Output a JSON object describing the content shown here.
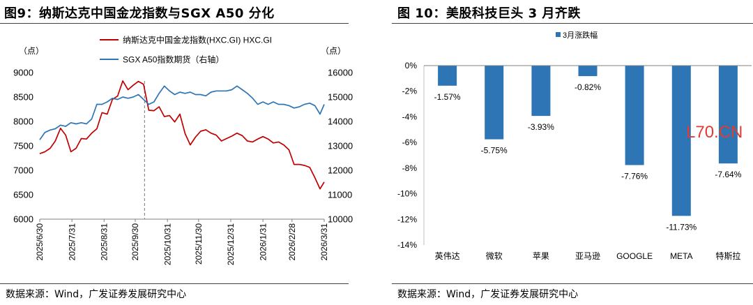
{
  "figures": [
    {
      "source": "数据来源：Wind，广发证券发展研究中心"
    },
    {
      "source": "数据来源：Wind，广发证券发展研究中心",
      "watermark": "L70.CN"
    }
  ],
  "colors": {
    "hxc": "#c00000",
    "sgx": "#2e75b6",
    "bar": "#2e75b6",
    "watermark": "#e03c31"
  },
  "chart_data": [
    {
      "type": "line",
      "title": "图9：纳斯达克中国金龙指数与SGX A50 分化",
      "x_tick_labels": [
        "2025/6/30",
        "2025/7/31",
        "2025/8/31",
        "2025/9/30",
        "2025/10/31",
        "2025/11/30",
        "2025/12/31",
        "2026/1/31",
        "2026/2/28",
        "2026/3/31"
      ],
      "y_left": {
        "unit": "（点）",
        "ylim": [
          6000,
          9000
        ],
        "ticks": [
          9000,
          8500,
          8000,
          7500,
          7000,
          6500,
          6000
        ]
      },
      "y_right": {
        "unit": "（点）",
        "ylim": [
          10000,
          16000
        ],
        "ticks": [
          16000,
          15000,
          14000,
          13000,
          12000,
          11000,
          10000
        ]
      },
      "reference_line_date": "2025-10-09",
      "legend_position": "top-center",
      "x": [
        "2025-06-30",
        "2025-07-05",
        "2025-07-10",
        "2025-07-15",
        "2025-07-20",
        "2025-07-25",
        "2025-07-30",
        "2025-08-04",
        "2025-08-09",
        "2025-08-14",
        "2025-08-19",
        "2025-08-24",
        "2025-08-29",
        "2025-09-03",
        "2025-09-08",
        "2025-09-13",
        "2025-09-18",
        "2025-09-23",
        "2025-09-28",
        "2025-10-03",
        "2025-10-08",
        "2025-10-13",
        "2025-10-18",
        "2025-10-23",
        "2025-10-28",
        "2025-11-02",
        "2025-11-07",
        "2025-11-12",
        "2025-11-17",
        "2025-11-22",
        "2025-11-27",
        "2025-12-02",
        "2025-12-07",
        "2025-12-12",
        "2025-12-17",
        "2025-12-22",
        "2025-12-27",
        "2026-01-01",
        "2026-01-06",
        "2026-01-11",
        "2026-01-16",
        "2026-01-21",
        "2026-01-26",
        "2026-01-31",
        "2026-02-05",
        "2026-02-10",
        "2026-02-15",
        "2026-02-20",
        "2026-02-25",
        "2026-03-02",
        "2026-03-07",
        "2026-03-12",
        "2026-03-17",
        "2026-03-22",
        "2026-03-27",
        "2026-03-31"
      ],
      "series": [
        {
          "name": "纳斯达克中国金龙指数(HXC.GI) HXC.GI",
          "axis": "left",
          "color_key": "hxc",
          "values": [
            7340,
            7380,
            7450,
            7600,
            7860,
            7720,
            7380,
            7450,
            7650,
            7640,
            7760,
            7850,
            8180,
            8150,
            8450,
            8520,
            8830,
            8650,
            8740,
            8820,
            8760,
            8230,
            8220,
            8300,
            8100,
            8120,
            7990,
            8150,
            7750,
            7520,
            7680,
            7800,
            7830,
            7760,
            7720,
            7600,
            7650,
            7700,
            7760,
            7710,
            7600,
            7580,
            7640,
            7690,
            7640,
            7560,
            7580,
            7520,
            7420,
            7120,
            7120,
            7100,
            7060,
            6850,
            6620,
            6760
          ]
        },
        {
          "name": "SGX A50指数期货（右轴）",
          "axis": "right",
          "color_key": "sgx",
          "values": [
            13250,
            13550,
            13650,
            13700,
            13850,
            13800,
            13950,
            13900,
            13950,
            13900,
            14100,
            14700,
            14700,
            14800,
            14950,
            14900,
            15000,
            14950,
            15000,
            15100,
            14900,
            14700,
            14800,
            15150,
            15450,
            15250,
            15100,
            15200,
            15150,
            15200,
            15100,
            15100,
            15050,
            15200,
            15250,
            15250,
            15250,
            15300,
            15450,
            15300,
            15150,
            14950,
            14700,
            14800,
            14700,
            14800,
            14700,
            14700,
            14650,
            14550,
            14600,
            14700,
            14750,
            14650,
            14300,
            14700
          ]
        }
      ]
    },
    {
      "type": "bar",
      "title": "图 10：美股科技巨头 3 月齐跌",
      "categories": [
        "英伟达",
        "微软",
        "苹果",
        "亚马逊",
        "GOOGLE",
        "META",
        "特斯拉"
      ],
      "series": [
        {
          "name": "3月涨跌幅",
          "values": [
            -1.57,
            -5.75,
            -3.93,
            -0.82,
            -7.76,
            -11.73,
            -7.64
          ]
        }
      ],
      "data_labels": [
        "-1.57%",
        "-5.75%",
        "-3.93%",
        "-0.82%",
        "-7.76%",
        "-11.73%",
        "-7.64%"
      ],
      "ylim": [
        -14,
        0
      ],
      "y_ticks": [
        0,
        -2,
        -4,
        -6,
        -8,
        -10,
        -12,
        -14
      ],
      "y_tick_labels": [
        "0%",
        "-2%",
        "-4%",
        "-6%",
        "-8%",
        "-10%",
        "-12%",
        "-14%"
      ],
      "legend_position": "top-center"
    }
  ]
}
